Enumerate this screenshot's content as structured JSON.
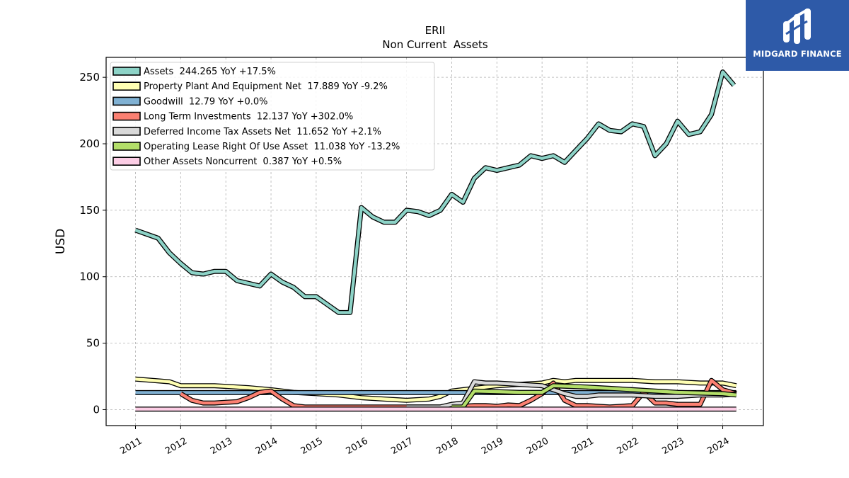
{
  "brand": {
    "name": "MIDGARD FINANCE",
    "logo_icon": "midgard-m-logo-icon",
    "color": "#2e5aa8"
  },
  "chart_data": {
    "type": "line",
    "title": "ERII",
    "subtitle": "Non Current  Assets",
    "ylabel": "USD",
    "xlabel": "",
    "ylim": [
      -12,
      265
    ],
    "xlim": [
      2010.35,
      2024.9
    ],
    "yticks": [
      0,
      50,
      100,
      150,
      200,
      250
    ],
    "xticks": [
      2011,
      2012,
      2013,
      2014,
      2015,
      2016,
      2017,
      2018,
      2019,
      2020,
      2021,
      2022,
      2023,
      2024
    ],
    "grid": true,
    "legend_position": "top-left",
    "series": [
      {
        "name": "Assets  244.265 YoY +17.5%",
        "color": "#8dd3c7",
        "points": [
          [
            2011.0,
            135
          ],
          [
            2011.25,
            132
          ],
          [
            2011.5,
            129
          ],
          [
            2011.75,
            118
          ],
          [
            2012.0,
            110
          ],
          [
            2012.25,
            103
          ],
          [
            2012.5,
            102
          ],
          [
            2012.75,
            104
          ],
          [
            2013.0,
            104
          ],
          [
            2013.25,
            97
          ],
          [
            2013.5,
            95
          ],
          [
            2013.75,
            93
          ],
          [
            2014.0,
            102
          ],
          [
            2014.25,
            96
          ],
          [
            2014.5,
            92
          ],
          [
            2014.75,
            85
          ],
          [
            2015.0,
            85
          ],
          [
            2015.25,
            79
          ],
          [
            2015.5,
            73
          ],
          [
            2015.75,
            73
          ],
          [
            2016.0,
            152
          ],
          [
            2016.25,
            145
          ],
          [
            2016.5,
            141
          ],
          [
            2016.75,
            141
          ],
          [
            2017.0,
            150
          ],
          [
            2017.25,
            149
          ],
          [
            2017.5,
            146
          ],
          [
            2017.75,
            150
          ],
          [
            2018.0,
            162
          ],
          [
            2018.25,
            156
          ],
          [
            2018.5,
            174
          ],
          [
            2018.75,
            182
          ],
          [
            2019.0,
            180
          ],
          [
            2019.25,
            182
          ],
          [
            2019.5,
            184
          ],
          [
            2019.75,
            191
          ],
          [
            2020.0,
            189
          ],
          [
            2020.25,
            191
          ],
          [
            2020.5,
            186
          ],
          [
            2020.75,
            195
          ],
          [
            2021.0,
            204
          ],
          [
            2021.25,
            215
          ],
          [
            2021.5,
            210
          ],
          [
            2021.75,
            209
          ],
          [
            2022.0,
            215
          ],
          [
            2022.25,
            213
          ],
          [
            2022.5,
            191
          ],
          [
            2022.75,
            200
          ],
          [
            2023.0,
            217
          ],
          [
            2023.25,
            207
          ],
          [
            2023.5,
            209
          ],
          [
            2023.75,
            222
          ],
          [
            2024.0,
            254
          ],
          [
            2024.25,
            244
          ]
        ]
      },
      {
        "name": "Property Plant And Equipment Net  17.889 YoY -9.2%",
        "color": "#ffffb3",
        "points": [
          [
            2011.0,
            23
          ],
          [
            2011.75,
            21
          ],
          [
            2012.0,
            18
          ],
          [
            2012.5,
            18
          ],
          [
            2012.75,
            18
          ],
          [
            2013.0,
            17.5
          ],
          [
            2013.5,
            16.5
          ],
          [
            2014.0,
            15
          ],
          [
            2014.5,
            13
          ],
          [
            2015.0,
            12
          ],
          [
            2015.5,
            11
          ],
          [
            2016.0,
            9
          ],
          [
            2016.5,
            8
          ],
          [
            2017.0,
            7
          ],
          [
            2017.5,
            8
          ],
          [
            2017.75,
            10
          ],
          [
            2018.0,
            14
          ],
          [
            2018.5,
            16
          ],
          [
            2019.0,
            18
          ],
          [
            2019.5,
            19
          ],
          [
            2020.0,
            20
          ],
          [
            2020.25,
            22
          ],
          [
            2020.5,
            21
          ],
          [
            2020.75,
            22
          ],
          [
            2021.0,
            22
          ],
          [
            2021.25,
            22
          ],
          [
            2021.5,
            22
          ],
          [
            2021.75,
            22
          ],
          [
            2022.0,
            22
          ],
          [
            2022.5,
            21
          ],
          [
            2023.0,
            21
          ],
          [
            2023.5,
            20
          ],
          [
            2024.0,
            20
          ],
          [
            2024.3,
            18
          ]
        ]
      },
      {
        "name": "Goodwill  12.79 YoY +0.0%",
        "color": "#80b1d3",
        "points": [
          [
            2011.0,
            12.8
          ],
          [
            2024.3,
            12.8
          ]
        ]
      },
      {
        "name": "Long Term Investments  12.137 YoY +302.0%",
        "color": "#fb8072",
        "points": [
          [
            2012.0,
            12
          ],
          [
            2012.25,
            7
          ],
          [
            2012.5,
            5
          ],
          [
            2012.75,
            5
          ],
          [
            2013.0,
            5.5
          ],
          [
            2013.25,
            6
          ],
          [
            2013.5,
            9
          ],
          [
            2013.75,
            13
          ],
          [
            2014.0,
            14
          ],
          [
            2014.25,
            8
          ],
          [
            2014.5,
            3
          ],
          [
            2014.75,
            2
          ],
          [
            2015.0,
            2
          ],
          [
            2016.0,
            2
          ],
          [
            2017.0,
            2
          ],
          [
            2018.0,
            2
          ],
          [
            2018.25,
            2.5
          ],
          [
            2018.5,
            3
          ],
          [
            2018.75,
            3
          ],
          [
            2019.0,
            2.5
          ],
          [
            2019.25,
            3.5
          ],
          [
            2019.5,
            3
          ],
          [
            2019.75,
            7
          ],
          [
            2020.0,
            12
          ],
          [
            2020.25,
            20
          ],
          [
            2020.5,
            7
          ],
          [
            2020.75,
            3
          ],
          [
            2021.0,
            3
          ],
          [
            2021.5,
            2
          ],
          [
            2022.0,
            3
          ],
          [
            2022.25,
            13
          ],
          [
            2022.5,
            5
          ],
          [
            2022.75,
            5
          ],
          [
            2023.0,
            4
          ],
          [
            2023.5,
            4
          ],
          [
            2023.75,
            22
          ],
          [
            2024.0,
            15
          ],
          [
            2024.3,
            12
          ]
        ]
      },
      {
        "name": "Deferred Income Tax Assets Net  11.652 YoY +2.1%",
        "color": "#d9d9d9",
        "points": [
          [
            2017.0,
            2
          ],
          [
            2017.75,
            2
          ],
          [
            2018.0,
            4
          ],
          [
            2018.25,
            5
          ],
          [
            2018.5,
            21
          ],
          [
            2018.75,
            20
          ],
          [
            2019.0,
            20
          ],
          [
            2019.5,
            19
          ],
          [
            2020.0,
            18
          ],
          [
            2020.25,
            15
          ],
          [
            2020.5,
            12
          ],
          [
            2020.75,
            10
          ],
          [
            2021.0,
            10
          ],
          [
            2021.25,
            11
          ],
          [
            2021.5,
            11
          ],
          [
            2021.75,
            11
          ],
          [
            2022.0,
            11
          ],
          [
            2022.5,
            10
          ],
          [
            2023.0,
            10
          ],
          [
            2023.5,
            11
          ],
          [
            2024.0,
            11
          ],
          [
            2024.3,
            11.7
          ]
        ]
      },
      {
        "name": "Operating Lease Right Of Use Asset  11.038 YoY -13.2%",
        "color": "#b3de69",
        "points": [
          [
            2018.0,
            2
          ],
          [
            2018.25,
            2
          ],
          [
            2018.5,
            14
          ],
          [
            2019.0,
            13.5
          ],
          [
            2019.5,
            13
          ],
          [
            2020.0,
            13
          ],
          [
            2020.25,
            18
          ],
          [
            2021.0,
            17
          ],
          [
            2021.5,
            16
          ],
          [
            2022.0,
            15
          ],
          [
            2022.5,
            14
          ],
          [
            2023.0,
            13
          ],
          [
            2023.5,
            12.5
          ],
          [
            2024.0,
            12
          ],
          [
            2024.3,
            11
          ]
        ]
      },
      {
        "name": "Other Assets Noncurrent  0.387 YoY +0.5%",
        "color": "#fccde5",
        "points": [
          [
            2011.0,
            0.4
          ],
          [
            2024.3,
            0.4
          ]
        ]
      }
    ]
  }
}
